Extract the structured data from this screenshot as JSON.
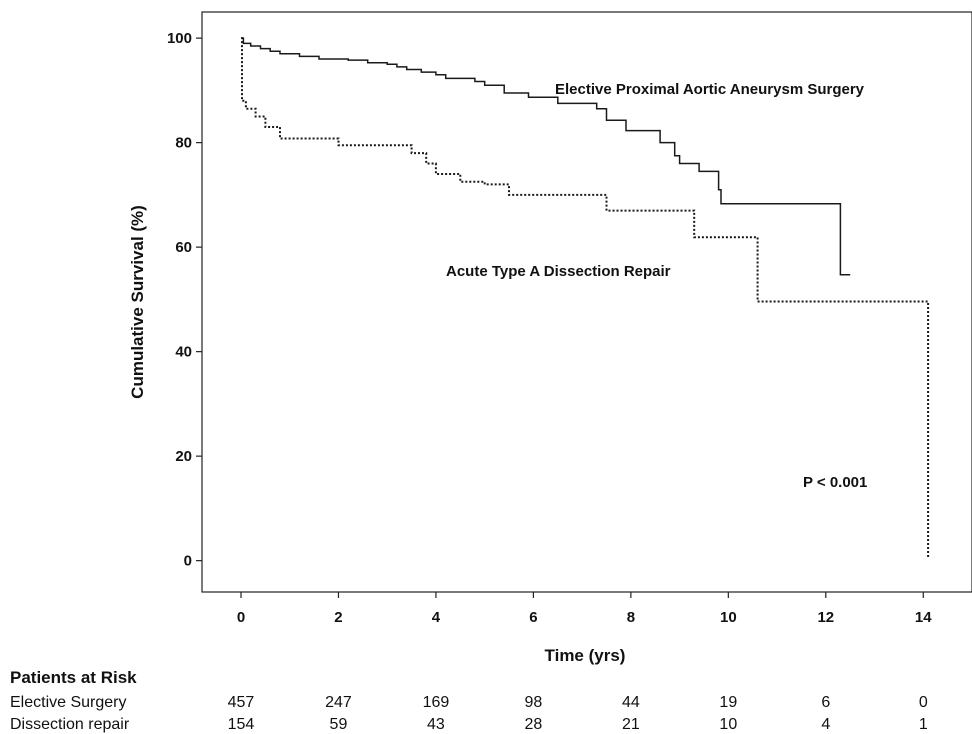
{
  "chart_data": {
    "type": "line",
    "subtype": "kaplan-meier",
    "xlabel": "Time (yrs)",
    "ylabel": "Cumulative Survival (%)",
    "xlim": [
      -0.8,
      15
    ],
    "ylim": [
      -6,
      105
    ],
    "xticks": [
      0,
      2,
      4,
      6,
      8,
      10,
      12,
      14
    ],
    "yticks": [
      0,
      20,
      40,
      60,
      80,
      100
    ],
    "grid": false,
    "series": [
      {
        "name": "Elective Proximal Aortic Aneurysm Surgery",
        "style": "solid",
        "color": "#1a1a1a",
        "points": [
          [
            0,
            100
          ],
          [
            0.05,
            99
          ],
          [
            0.2,
            98.5
          ],
          [
            0.4,
            98
          ],
          [
            0.6,
            97.5
          ],
          [
            0.8,
            97
          ],
          [
            1.2,
            96.5
          ],
          [
            1.6,
            96
          ],
          [
            2.2,
            95.8
          ],
          [
            2.6,
            95.3
          ],
          [
            3.0,
            95
          ],
          [
            3.2,
            94.5
          ],
          [
            3.4,
            94
          ],
          [
            3.7,
            93.5
          ],
          [
            4.0,
            93
          ],
          [
            4.2,
            92.3
          ],
          [
            4.8,
            91.7
          ],
          [
            5.0,
            91
          ],
          [
            5.4,
            89.5
          ],
          [
            5.9,
            88.7
          ],
          [
            6.5,
            87.5
          ],
          [
            7.3,
            86.5
          ],
          [
            7.5,
            84.3
          ],
          [
            7.9,
            82.3
          ],
          [
            8.6,
            80
          ],
          [
            8.9,
            77.5
          ],
          [
            9.0,
            76
          ],
          [
            9.4,
            74.5
          ],
          [
            9.8,
            71
          ],
          [
            9.85,
            68.3
          ],
          [
            12.3,
            54.7
          ],
          [
            12.5,
            54.7
          ]
        ]
      },
      {
        "name": "Acute Type A Dissection Repair",
        "style": "dotted",
        "color": "#1a1a1a",
        "points": [
          [
            0,
            100
          ],
          [
            0.02,
            88
          ],
          [
            0.1,
            86.5
          ],
          [
            0.3,
            85
          ],
          [
            0.5,
            83
          ],
          [
            0.8,
            80.8
          ],
          [
            2.0,
            79.5
          ],
          [
            3.5,
            78
          ],
          [
            3.8,
            76
          ],
          [
            4.0,
            74
          ],
          [
            4.5,
            72.5
          ],
          [
            5.0,
            72
          ],
          [
            5.5,
            70
          ],
          [
            7.5,
            67
          ],
          [
            9.0,
            67
          ],
          [
            9.3,
            61.9
          ],
          [
            10.6,
            49.6
          ],
          [
            14.1,
            0.7
          ]
        ]
      }
    ],
    "annotations": [
      "Elective Proximal Aortic Aneurysm Surgery",
      "Acute Type A Dissection Repair",
      "P < 0.001"
    ]
  },
  "labels": {
    "elective": "Elective Proximal Aortic Aneurysm Surgery",
    "dissection": "Acute Type A Dissection Repair",
    "pvalue": "P < 0.001"
  },
  "risk_table": {
    "title": "Patients at Risk",
    "times": [
      0,
      2,
      4,
      6,
      8,
      10,
      12,
      14
    ],
    "rows": [
      {
        "label": "Elective Surgery",
        "values": [
          457,
          247,
          169,
          98,
          44,
          19,
          6,
          0
        ]
      },
      {
        "label": "Dissection repair",
        "values": [
          154,
          59,
          43,
          28,
          21,
          10,
          4,
          1
        ]
      }
    ]
  }
}
